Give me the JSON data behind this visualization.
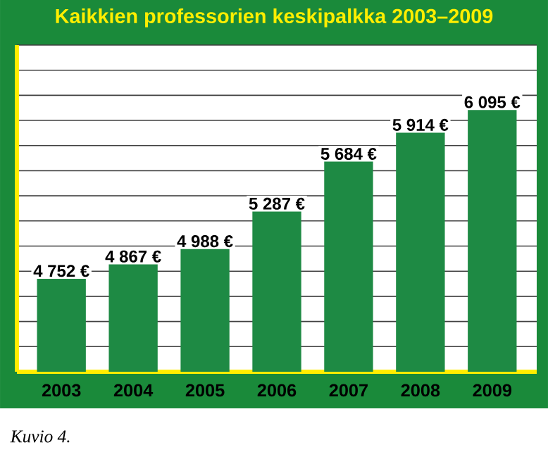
{
  "chart_data": {
    "type": "bar",
    "title": "Kaikkien professorien keskipalkka 2003–2009",
    "categories": [
      "2003",
      "2004",
      "2005",
      "2006",
      "2007",
      "2008",
      "2009"
    ],
    "values": [
      4752,
      4867,
      4988,
      5287,
      5684,
      5914,
      6095
    ],
    "value_labels": [
      "4 752 €",
      "4 867 €",
      "4 988 €",
      "5 287 €",
      "5 684 €",
      "5 914 €",
      "6 095 €"
    ],
    "color": "#1e8a44",
    "ylim": [
      4000,
      6600
    ],
    "yticks": [
      {
        "value": 4000,
        "label": null
      },
      {
        "value": 4200,
        "label": null
      },
      {
        "value": 4400,
        "label": null
      },
      {
        "value": 4600,
        "label": null
      },
      {
        "value": 4800,
        "label": null
      },
      {
        "value": 5000,
        "label": null
      },
      {
        "value": 5200,
        "label": null
      },
      {
        "value": 5400,
        "label": null
      },
      {
        "value": 5600,
        "label": null
      },
      {
        "value": 5800,
        "label": null
      },
      {
        "value": 6000,
        "label": null
      },
      {
        "value": 6200,
        "label": null
      },
      {
        "value": 6400,
        "label": null
      },
      {
        "value": 6600,
        "label": null
      }
    ],
    "grid": "y",
    "tick_labels": "x",
    "annotations": [
      "Kuvio 4."
    ]
  }
}
